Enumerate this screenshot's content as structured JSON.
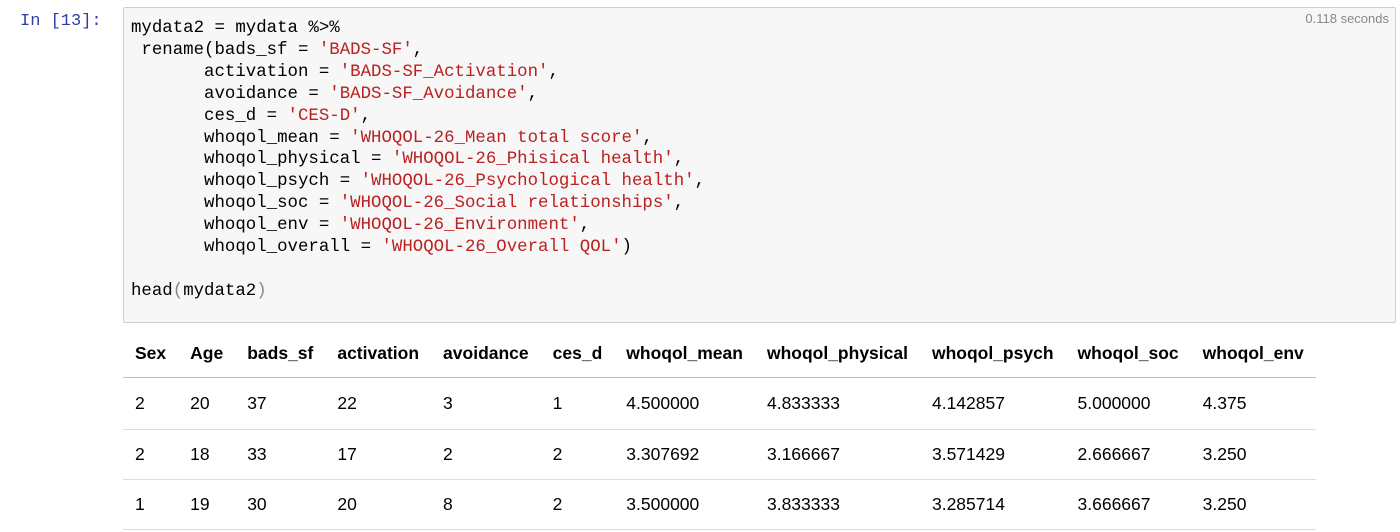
{
  "prompt": "In [13]:",
  "timing": "0.118 seconds",
  "code_lines": [
    [
      {
        "t": "mydata2 = mydata %>%"
      }
    ],
    [
      {
        "t": " rename(bads_sf = "
      },
      {
        "t": "'BADS-SF'",
        "c": "str"
      },
      {
        "t": ","
      }
    ],
    [
      {
        "t": "       activation = "
      },
      {
        "t": "'BADS-SF_Activation'",
        "c": "str"
      },
      {
        "t": ","
      }
    ],
    [
      {
        "t": "       avoidance = "
      },
      {
        "t": "'BADS-SF_Avoidance'",
        "c": "str"
      },
      {
        "t": ","
      }
    ],
    [
      {
        "t": "       ces_d = "
      },
      {
        "t": "'CES-D'",
        "c": "str"
      },
      {
        "t": ","
      }
    ],
    [
      {
        "t": "       whoqol_mean = "
      },
      {
        "t": "'WHOQOL-26_Mean total score'",
        "c": "str"
      },
      {
        "t": ","
      }
    ],
    [
      {
        "t": "       whoqol_physical = "
      },
      {
        "t": "'WHOQOL-26_Phisical health'",
        "c": "str"
      },
      {
        "t": ","
      }
    ],
    [
      {
        "t": "       whoqol_psych = "
      },
      {
        "t": "'WHOQOL-26_Psychological health'",
        "c": "str"
      },
      {
        "t": ","
      }
    ],
    [
      {
        "t": "       whoqol_soc = "
      },
      {
        "t": "'WHOQOL-26_Social relationships'",
        "c": "str"
      },
      {
        "t": ","
      }
    ],
    [
      {
        "t": "       whoqol_env = "
      },
      {
        "t": "'WHOQOL-26_Environment'",
        "c": "str"
      },
      {
        "t": ","
      }
    ],
    [
      {
        "t": "       whoqol_overall = "
      },
      {
        "t": "'WHOQOL-26_Overall QOL'",
        "c": "str"
      },
      {
        "t": ")"
      }
    ],
    [
      {
        "t": ""
      }
    ],
    [
      {
        "t": "head"
      },
      {
        "t": "(",
        "c": "paren"
      },
      {
        "t": "mydata2"
      },
      {
        "t": ")",
        "c": "paren"
      }
    ]
  ],
  "table": {
    "columns": [
      "Sex",
      "Age",
      "bads_sf",
      "activation",
      "avoidance",
      "ces_d",
      "whoqol_mean",
      "whoqol_physical",
      "whoqol_psych",
      "whoqol_soc",
      "whoqol_env"
    ],
    "rows": [
      [
        "2",
        "20",
        "37",
        "22",
        "3",
        "1",
        "4.500000",
        "4.833333",
        "4.142857",
        "5.000000",
        "4.375"
      ],
      [
        "2",
        "18",
        "33",
        "17",
        "2",
        "2",
        "3.307692",
        "3.166667",
        "3.571429",
        "2.666667",
        "3.250"
      ],
      [
        "1",
        "19",
        "30",
        "20",
        "8",
        "2",
        "3.500000",
        "3.833333",
        "3.285714",
        "3.666667",
        "3.250"
      ]
    ]
  }
}
